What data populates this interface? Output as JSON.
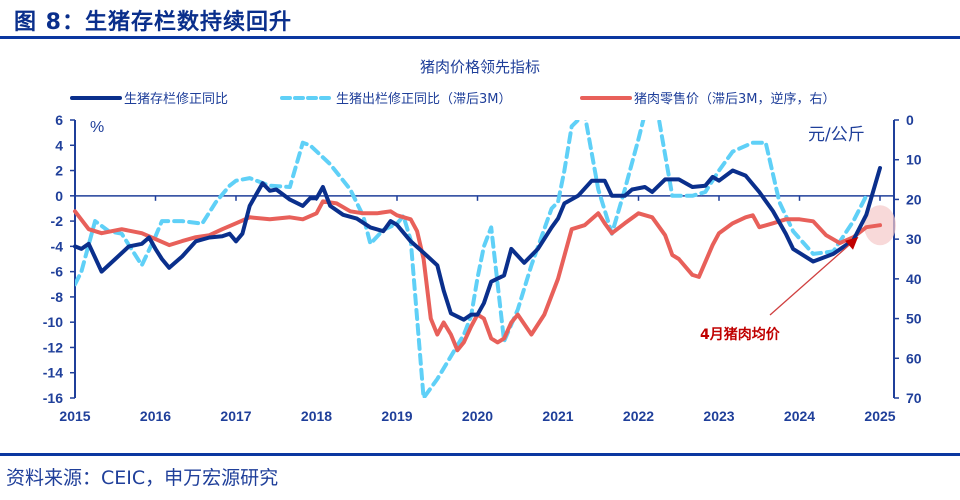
{
  "header": {
    "figure_title": "图 8：生猪存栏数持续回升"
  },
  "footer": {
    "source": "资料来源：CEIC，申万宏源研究"
  },
  "colors": {
    "brand": "#0a37a0",
    "series1": "#0a2f8c",
    "series2": "#5fd0f7",
    "series3": "#e8605a",
    "annotation": "#c00000",
    "highlight": "#f5c9c9"
  },
  "chart_data": {
    "type": "line",
    "title": "猪肉价格领先指标",
    "left_axis": {
      "unit_label": "%",
      "range": [
        -16,
        6
      ],
      "ticks": [
        "6",
        "4",
        "2",
        "0",
        "-2",
        "-4",
        "-6",
        "-8",
        "-10",
        "-12",
        "-14",
        "-16"
      ]
    },
    "right_axis": {
      "unit_label": "元/公斤",
      "range": [
        0,
        70
      ],
      "inverted": true,
      "ticks": [
        "0",
        "10",
        "20",
        "30",
        "40",
        "50",
        "60",
        "70"
      ]
    },
    "x_axis": {
      "range": [
        2015,
        2025
      ],
      "ticks": [
        "2015",
        "2016",
        "2017",
        "2018",
        "2019",
        "2020",
        "2021",
        "2022",
        "2023",
        "2024",
        "2025"
      ]
    },
    "series": [
      {
        "name": "生猪存栏修正同比",
        "axis": "left",
        "style": "solid",
        "points": [
          [
            2015.0,
            -4.0
          ],
          [
            2015.08,
            -4.2
          ],
          [
            2015.17,
            -3.8
          ],
          [
            2015.33,
            -6.0
          ],
          [
            2015.5,
            -5.0
          ],
          [
            2015.67,
            -4.0
          ],
          [
            2015.83,
            -3.8
          ],
          [
            2015.92,
            -3.3
          ],
          [
            2016.0,
            -4.2
          ],
          [
            2016.08,
            -5.0
          ],
          [
            2016.17,
            -5.7
          ],
          [
            2016.33,
            -4.8
          ],
          [
            2016.5,
            -3.6
          ],
          [
            2016.67,
            -3.3
          ],
          [
            2016.83,
            -3.2
          ],
          [
            2016.92,
            -3.0
          ],
          [
            2017.0,
            -3.6
          ],
          [
            2017.08,
            -3.0
          ],
          [
            2017.17,
            -0.8
          ],
          [
            2017.33,
            1.0
          ],
          [
            2017.42,
            0.4
          ],
          [
            2017.5,
            0.5
          ],
          [
            2017.67,
            -0.3
          ],
          [
            2017.83,
            -0.8
          ],
          [
            2017.92,
            -0.2
          ],
          [
            2018.0,
            -0.2
          ],
          [
            2018.08,
            0.7
          ],
          [
            2018.17,
            -0.8
          ],
          [
            2018.33,
            -1.5
          ],
          [
            2018.5,
            -1.8
          ],
          [
            2018.67,
            -2.5
          ],
          [
            2018.83,
            -2.8
          ],
          [
            2018.92,
            -2.0
          ],
          [
            2019.0,
            -2.3
          ],
          [
            2019.17,
            -3.6
          ],
          [
            2019.33,
            -4.5
          ],
          [
            2019.5,
            -5.5
          ],
          [
            2019.58,
            -7.5
          ],
          [
            2019.67,
            -9.3
          ],
          [
            2019.83,
            -9.8
          ],
          [
            2019.92,
            -9.4
          ],
          [
            2020.0,
            -9.4
          ],
          [
            2020.08,
            -8.5
          ],
          [
            2020.17,
            -6.8
          ],
          [
            2020.33,
            -6.3
          ],
          [
            2020.42,
            -4.2
          ],
          [
            2020.58,
            -5.3
          ],
          [
            2020.75,
            -4.2
          ],
          [
            2020.92,
            -2.5
          ],
          [
            2021.0,
            -1.8
          ],
          [
            2021.08,
            -0.6
          ],
          [
            2021.25,
            0.0
          ],
          [
            2021.42,
            1.2
          ],
          [
            2021.58,
            1.2
          ],
          [
            2021.67,
            0.0
          ],
          [
            2021.83,
            0.0
          ],
          [
            2021.92,
            0.5
          ],
          [
            2022.08,
            0.7
          ],
          [
            2022.17,
            0.3
          ],
          [
            2022.33,
            1.3
          ],
          [
            2022.5,
            1.3
          ],
          [
            2022.67,
            0.7
          ],
          [
            2022.83,
            0.8
          ],
          [
            2022.92,
            1.5
          ],
          [
            2023.0,
            1.2
          ],
          [
            2023.17,
            2.0
          ],
          [
            2023.33,
            1.6
          ],
          [
            2023.5,
            0.3
          ],
          [
            2023.67,
            -1.2
          ],
          [
            2023.83,
            -3.0
          ],
          [
            2023.92,
            -4.2
          ],
          [
            2024.17,
            -5.2
          ],
          [
            2024.42,
            -4.6
          ],
          [
            2024.67,
            -3.5
          ],
          [
            2024.83,
            -1.5
          ],
          [
            2025.0,
            2.2
          ]
        ]
      },
      {
        "name": "生猪出栏修正同比（滞后3M）",
        "axis": "left",
        "style": "dashed",
        "points": [
          [
            2015.0,
            -7.0
          ],
          [
            2015.08,
            -6.0
          ],
          [
            2015.25,
            -2.0
          ],
          [
            2015.42,
            -2.8
          ],
          [
            2015.58,
            -3.0
          ],
          [
            2015.83,
            -5.5
          ],
          [
            2016.0,
            -3.2
          ],
          [
            2016.08,
            -2.0
          ],
          [
            2016.33,
            -2.0
          ],
          [
            2016.58,
            -2.2
          ],
          [
            2016.75,
            -0.5
          ],
          [
            2016.92,
            0.8
          ],
          [
            2017.0,
            1.2
          ],
          [
            2017.17,
            1.4
          ],
          [
            2017.42,
            0.8
          ],
          [
            2017.67,
            0.7
          ],
          [
            2017.83,
            4.2
          ],
          [
            2017.92,
            4.0
          ],
          [
            2018.17,
            2.5
          ],
          [
            2018.42,
            0.5
          ],
          [
            2018.58,
            -1.6
          ],
          [
            2018.67,
            -3.8
          ],
          [
            2018.83,
            -2.7
          ],
          [
            2019.0,
            -2.2
          ],
          [
            2019.08,
            -1.6
          ],
          [
            2019.17,
            -3.5
          ],
          [
            2019.33,
            -16.0
          ],
          [
            2019.5,
            -14.5
          ],
          [
            2019.83,
            -11.0
          ],
          [
            2019.92,
            -9.5
          ],
          [
            2020.0,
            -6.5
          ],
          [
            2020.08,
            -4.0
          ],
          [
            2020.17,
            -2.5
          ],
          [
            2020.33,
            -11.5
          ],
          [
            2020.5,
            -9.0
          ],
          [
            2020.67,
            -5.5
          ],
          [
            2020.92,
            -1.0
          ],
          [
            2021.0,
            -0.5
          ],
          [
            2021.08,
            2.0
          ],
          [
            2021.17,
            5.5
          ],
          [
            2021.33,
            6.5
          ],
          [
            2021.5,
            0.5
          ],
          [
            2021.67,
            -3.0
          ],
          [
            2021.83,
            0.5
          ],
          [
            2022.0,
            4.5
          ],
          [
            2022.08,
            6.5
          ],
          [
            2022.25,
            6.2
          ],
          [
            2022.42,
            0.0
          ],
          [
            2022.67,
            0.0
          ],
          [
            2022.83,
            0.3
          ],
          [
            2023.0,
            2.0
          ],
          [
            2023.17,
            3.5
          ],
          [
            2023.42,
            4.2
          ],
          [
            2023.58,
            4.2
          ],
          [
            2023.75,
            -0.5
          ],
          [
            2023.92,
            -2.8
          ],
          [
            2024.17,
            -4.6
          ],
          [
            2024.42,
            -4.4
          ],
          [
            2024.67,
            -2.0
          ],
          [
            2024.83,
            0.0
          ]
        ]
      },
      {
        "name": "猪肉零售价（滞后3M，逆序，右）",
        "axis": "right",
        "style": "solid",
        "points": [
          [
            2015.0,
            23.0
          ],
          [
            2015.17,
            27.5
          ],
          [
            2015.33,
            28.5
          ],
          [
            2015.58,
            27.5
          ],
          [
            2015.83,
            28.5
          ],
          [
            2016.0,
            30.0
          ],
          [
            2016.17,
            31.5
          ],
          [
            2016.33,
            30.5
          ],
          [
            2016.5,
            29.5
          ],
          [
            2016.67,
            29.0
          ],
          [
            2016.83,
            27.5
          ],
          [
            2017.0,
            26.0
          ],
          [
            2017.17,
            24.5
          ],
          [
            2017.42,
            25.0
          ],
          [
            2017.67,
            24.5
          ],
          [
            2017.83,
            25.0
          ],
          [
            2018.0,
            23.5
          ],
          [
            2018.08,
            20.5
          ],
          [
            2018.25,
            21.0
          ],
          [
            2018.42,
            23.0
          ],
          [
            2018.58,
            23.5
          ],
          [
            2018.75,
            23.5
          ],
          [
            2018.92,
            23.0
          ],
          [
            2019.0,
            24.0
          ],
          [
            2019.17,
            25.0
          ],
          [
            2019.25,
            28.0
          ],
          [
            2019.33,
            35.0
          ],
          [
            2019.42,
            50.0
          ],
          [
            2019.5,
            54.0
          ],
          [
            2019.58,
            51.0
          ],
          [
            2019.67,
            54.0
          ],
          [
            2019.75,
            58.0
          ],
          [
            2019.83,
            56.0
          ],
          [
            2019.92,
            52.0
          ],
          [
            2020.0,
            49.0
          ],
          [
            2020.08,
            50.0
          ],
          [
            2020.17,
            55.0
          ],
          [
            2020.25,
            56.0
          ],
          [
            2020.33,
            55.0
          ],
          [
            2020.42,
            51.0
          ],
          [
            2020.5,
            49.0
          ],
          [
            2020.67,
            54.0
          ],
          [
            2020.83,
            49.0
          ],
          [
            2021.0,
            40.0
          ],
          [
            2021.17,
            27.5
          ],
          [
            2021.33,
            26.5
          ],
          [
            2021.5,
            23.5
          ],
          [
            2021.58,
            26.0
          ],
          [
            2021.67,
            28.5
          ],
          [
            2021.83,
            26.0
          ],
          [
            2022.0,
            23.5
          ],
          [
            2022.17,
            24.5
          ],
          [
            2022.33,
            29.0
          ],
          [
            2022.42,
            34.0
          ],
          [
            2022.5,
            35.0
          ],
          [
            2022.67,
            39.0
          ],
          [
            2022.75,
            39.5
          ],
          [
            2022.92,
            31.5
          ],
          [
            2023.0,
            28.5
          ],
          [
            2023.17,
            26.0
          ],
          [
            2023.33,
            24.5
          ],
          [
            2023.42,
            24.0
          ],
          [
            2023.5,
            27.0
          ],
          [
            2023.67,
            26.0
          ],
          [
            2023.83,
            25.0
          ],
          [
            2024.0,
            25.0
          ],
          [
            2024.17,
            25.5
          ],
          [
            2024.33,
            29.0
          ],
          [
            2024.5,
            31.0
          ],
          [
            2024.67,
            29.5
          ],
          [
            2024.83,
            27.0
          ],
          [
            2025.0,
            26.5
          ]
        ]
      }
    ],
    "legend": {
      "placement": "top",
      "entries": [
        "生猪存栏修正同比",
        "生猪出栏修正同比（滞后3M）",
        "猪肉零售价（滞后3M，逆序，右）"
      ]
    },
    "annotation": {
      "text": "4月猪肉均价",
      "target": [
        2025.0,
        26.5
      ]
    }
  }
}
